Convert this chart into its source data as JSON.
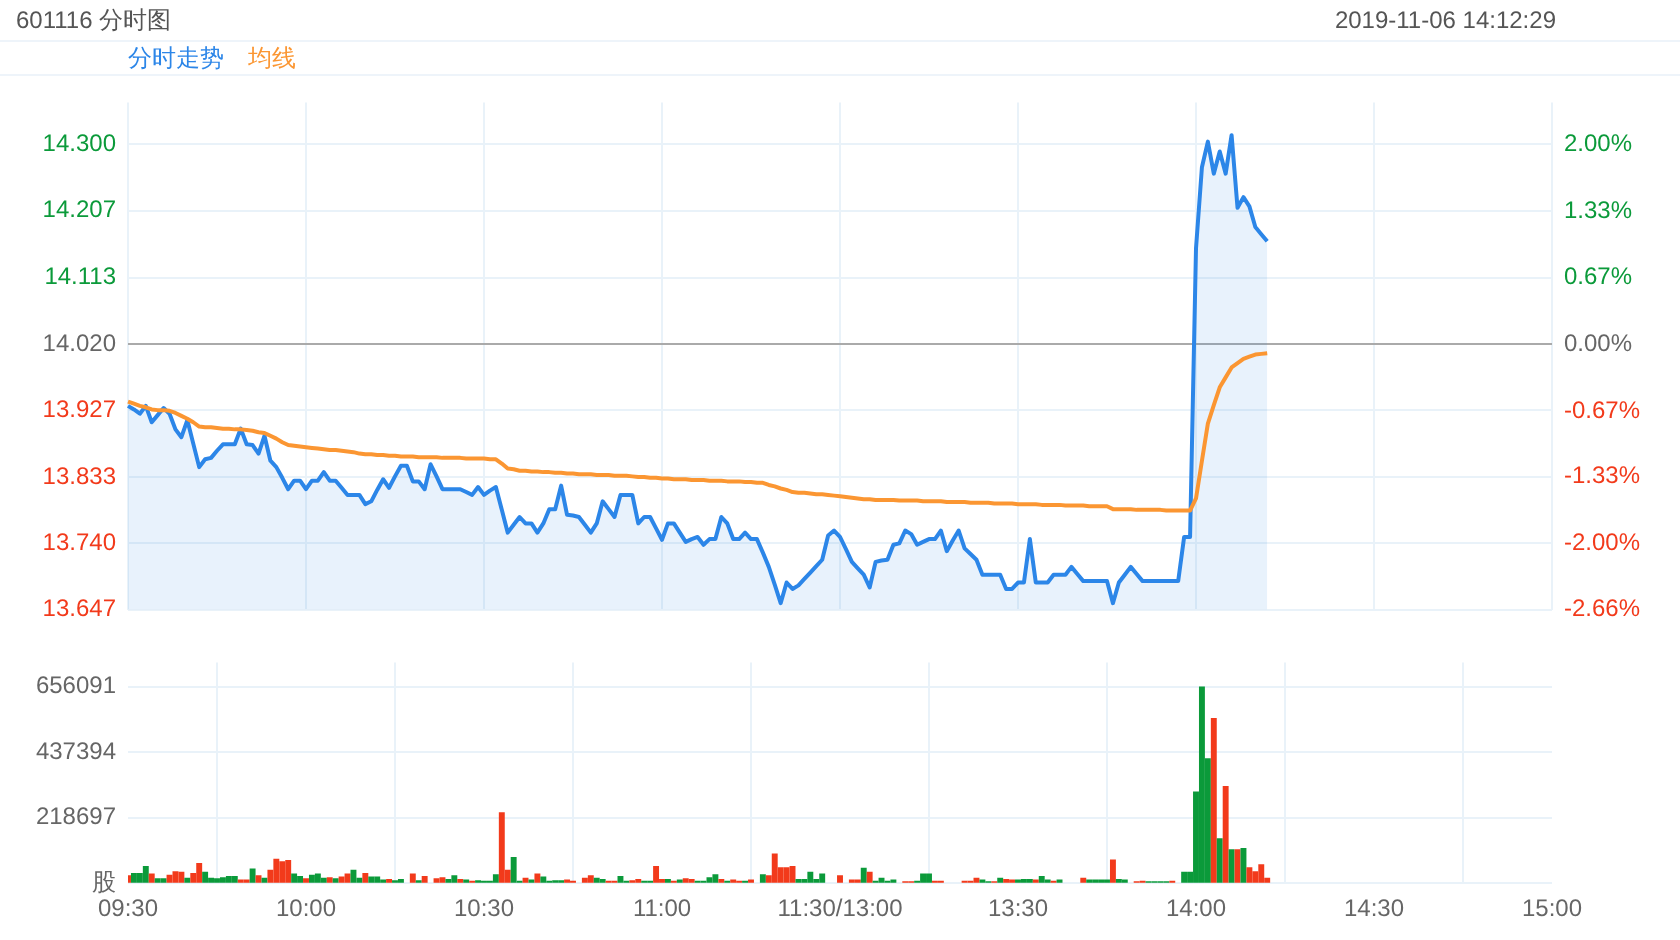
{
  "chart_data": [
    {
      "type": "line",
      "title": "601116 分时图",
      "subtitle": "2019-11-06 14:12:29",
      "legend": "top left",
      "marker": "none",
      "grid": true,
      "tick_labels": "y",
      "categories": [
        null,
        null,
        null,
        null,
        null,
        null,
        null,
        null,
        null,
        null,
        null,
        null,
        null,
        null,
        null,
        null,
        null,
        null,
        null,
        null,
        null,
        null,
        null,
        null,
        null,
        null,
        null,
        null,
        null,
        null,
        null,
        null,
        null,
        null,
        null,
        null,
        null,
        null,
        null,
        null,
        null,
        null,
        null,
        null,
        null,
        null,
        null,
        null,
        null,
        null,
        null,
        null,
        null,
        null,
        null,
        null,
        null,
        null,
        null,
        null,
        null,
        null,
        null,
        null,
        null,
        null,
        null,
        null,
        null,
        null,
        null,
        null,
        null,
        null,
        null,
        null,
        null,
        null,
        null,
        null,
        null,
        null,
        null,
        null,
        null,
        null,
        null,
        null,
        null,
        null,
        null,
        null,
        null,
        null,
        null,
        null,
        null,
        null,
        null,
        null,
        null,
        null,
        null,
        null,
        null,
        null,
        null,
        null,
        null,
        null,
        null,
        null,
        null,
        null,
        null,
        null,
        null,
        null,
        null,
        null,
        null,
        null,
        null,
        null,
        null,
        null,
        null,
        null,
        null,
        null,
        null,
        null,
        null,
        null,
        null,
        null,
        null,
        null,
        null,
        null,
        null,
        null,
        null,
        null,
        null,
        null,
        null,
        null,
        null,
        null,
        null,
        null,
        null,
        null,
        null,
        null,
        null,
        null,
        null,
        null,
        null,
        null,
        null,
        null,
        null,
        null,
        null,
        null,
        null,
        null,
        null,
        null,
        null,
        null,
        null,
        null,
        null,
        null,
        null,
        null,
        null,
        null,
        null,
        null,
        null,
        null,
        null,
        null,
        null,
        null,
        null,
        null,
        null,
        null,
        null,
        null,
        null,
        null,
        null,
        null,
        null,
        null,
        null,
        null,
        null,
        null,
        null,
        null,
        null,
        null,
        null,
        null,
        null,
        null,
        null,
        null,
        null,
        null,
        null,
        null,
        null,
        null,
        null,
        null,
        null,
        null,
        null,
        null,
        null,
        null,
        null,
        null,
        null,
        null,
        null,
        null,
        null,
        null,
        null,
        null,
        null
      ],
      "ylim": [
        13.647,
        14.359
      ],
      "yticks": [
        {
          "value": 13.647,
          "label": "13.647"
        },
        {
          "value": 13.74,
          "label": "13.740"
        },
        {
          "value": 13.833,
          "label": "13.833"
        },
        {
          "value": 13.927,
          "label": "13.927"
        },
        {
          "value": 14.02,
          "label": "14.020"
        },
        {
          "value": 14.113,
          "label": "14.113"
        },
        {
          "value": 14.207,
          "label": "14.207"
        },
        {
          "value": 14.3,
          "label": "14.300"
        }
      ],
      "y2lim": [
        -2.66,
        2.42
      ],
      "y2ticks": [
        {
          "value": -2.66,
          "label": "-2.66%"
        },
        {
          "value": -2,
          "label": "-2.00%"
        },
        {
          "value": -1.33,
          "label": "-1.33%"
        },
        {
          "value": -0.67,
          "label": "-0.67%"
        },
        {
          "value": 0,
          "label": "0.00%"
        },
        {
          "value": 0.67,
          "label": "0.67%"
        },
        {
          "value": 1.33,
          "label": "1.33%"
        },
        {
          "value": 2,
          "label": "2.00%"
        }
      ],
      "ref_lines": [
        {
          "axis": "y",
          "value": 14.02,
          "color": "#aaaaaa"
        }
      ],
      "series": [
        {
          "name": "分时走势",
          "type": "area",
          "color": "#2c86e8",
          "values": [
            13.933,
            13.928,
            13.922,
            13.933,
            13.91,
            13.92,
            13.93,
            13.922,
            13.9,
            13.889,
            13.913,
            13.88,
            13.847,
            13.858,
            13.86,
            13.87,
            13.879,
            13.879,
            13.879,
            13.901,
            13.879,
            13.878,
            13.866,
            13.891,
            13.856,
            13.847,
            13.832,
            13.816,
            13.828,
            13.828,
            13.816,
            13.828,
            13.828,
            13.84,
            13.828,
            13.828,
            13.818,
            13.808,
            13.808,
            13.808,
            13.795,
            13.799,
            13.815,
            13.83,
            13.818,
            13.834,
            13.849,
            13.849,
            13.827,
            13.827,
            13.816,
            13.851,
            13.834,
            13.816,
            13.816,
            13.816,
            13.816,
            13.812,
            13.808,
            13.819,
            13.808,
            13.814,
            13.819,
            13.787,
            13.755,
            13.766,
            13.777,
            13.768,
            13.768,
            13.755,
            13.768,
            13.788,
            13.788,
            13.821,
            13.78,
            13.779,
            13.777,
            13.766,
            13.755,
            13.768,
            13.799,
            13.788,
            13.777,
            13.808,
            13.808,
            13.808,
            13.768,
            13.777,
            13.777,
            13.761,
            13.745,
            13.768,
            13.768,
            13.755,
            13.742,
            13.746,
            13.749,
            13.738,
            13.746,
            13.746,
            13.777,
            13.768,
            13.746,
            13.746,
            13.755,
            13.746,
            13.746,
            13.727,
            13.707,
            13.682,
            13.656,
            13.685,
            13.676,
            13.681,
            13.69,
            13.699,
            13.708,
            13.717,
            13.751,
            13.758,
            13.749,
            13.732,
            13.714,
            13.705,
            13.696,
            13.678,
            13.714,
            13.716,
            13.717,
            13.738,
            13.74,
            13.758,
            13.753,
            13.738,
            13.742,
            13.746,
            13.746,
            13.758,
            13.729,
            13.744,
            13.758,
            13.733,
            13.725,
            13.717,
            13.696,
            13.696,
            13.696,
            13.696,
            13.676,
            13.676,
            13.685,
            13.685,
            13.746,
            13.685,
            13.685,
            13.685,
            13.696,
            13.696,
            13.696,
            13.707,
            13.697,
            13.687,
            13.687,
            13.687,
            13.687,
            13.687,
            13.656,
            13.685,
            13.696,
            13.707,
            13.697,
            13.687,
            13.687,
            13.687,
            13.687,
            13.687,
            13.687,
            13.687,
            13.749,
            13.749,
            14.154,
            14.268,
            14.304,
            14.259,
            14.29,
            14.259,
            14.313,
            14.211,
            14.226,
            14.213,
            14.184,
            14.174,
            14.164,
            null,
            null,
            null,
            null,
            null,
            null,
            null,
            null,
            null,
            null,
            null,
            null,
            null,
            null,
            null,
            null,
            null,
            null,
            null,
            null,
            null,
            null,
            null,
            null,
            null,
            null,
            null,
            null,
            null,
            null,
            null,
            null,
            null,
            null,
            null,
            null,
            null,
            null,
            null,
            null,
            null,
            null,
            null,
            null,
            null,
            null,
            null,
            null
          ]
        },
        {
          "name": "均线",
          "color": "#fb9632",
          "values": [
            13.939,
            13.936,
            13.933,
            13.931,
            13.928,
            13.927,
            13.927,
            13.926,
            13.923,
            13.919,
            13.915,
            13.91,
            13.904,
            13.903,
            13.903,
            13.902,
            13.901,
            13.901,
            13.9,
            13.9,
            13.899,
            13.898,
            13.896,
            13.895,
            13.891,
            13.887,
            13.882,
            13.878,
            13.877,
            13.876,
            13.875,
            13.874,
            13.873,
            13.872,
            13.871,
            13.871,
            13.87,
            13.869,
            13.868,
            13.866,
            13.865,
            13.865,
            13.864,
            13.864,
            13.863,
            13.863,
            13.862,
            13.862,
            13.862,
            13.861,
            13.861,
            13.861,
            13.861,
            13.86,
            13.86,
            13.86,
            13.86,
            13.859,
            13.859,
            13.859,
            13.859,
            13.858,
            13.858,
            13.852,
            13.845,
            13.844,
            13.842,
            13.842,
            13.841,
            13.841,
            13.84,
            13.84,
            13.839,
            13.839,
            13.838,
            13.838,
            13.837,
            13.837,
            13.837,
            13.836,
            13.836,
            13.836,
            13.835,
            13.835,
            13.835,
            13.834,
            13.833,
            13.833,
            13.832,
            13.832,
            13.831,
            13.831,
            13.83,
            13.83,
            13.83,
            13.829,
            13.829,
            13.829,
            13.828,
            13.828,
            13.828,
            13.827,
            13.827,
            13.827,
            13.826,
            13.826,
            13.825,
            13.825,
            13.822,
            13.82,
            13.817,
            13.815,
            13.812,
            13.811,
            13.811,
            13.81,
            13.809,
            13.809,
            13.808,
            13.807,
            13.806,
            13.805,
            13.804,
            13.803,
            13.802,
            13.802,
            13.801,
            13.801,
            13.801,
            13.801,
            13.8,
            13.8,
            13.8,
            13.8,
            13.799,
            13.799,
            13.799,
            13.799,
            13.798,
            13.798,
            13.798,
            13.798,
            13.797,
            13.797,
            13.797,
            13.797,
            13.796,
            13.796,
            13.796,
            13.796,
            13.795,
            13.795,
            13.795,
            13.795,
            13.794,
            13.794,
            13.794,
            13.794,
            13.793,
            13.793,
            13.793,
            13.793,
            13.792,
            13.792,
            13.792,
            13.792,
            13.788,
            13.788,
            13.788,
            13.788,
            13.787,
            13.787,
            13.787,
            13.787,
            13.787,
            13.786,
            13.786,
            13.786,
            13.786,
            13.786,
            13.803,
            13.856,
            13.908,
            13.934,
            13.959,
            13.973,
            13.987,
            13.993,
            13.999,
            14.002,
            14.005,
            14.006,
            14.007,
            null,
            null,
            null,
            null,
            null,
            null,
            null,
            null,
            null,
            null,
            null,
            null,
            null,
            null,
            null,
            null,
            null,
            null,
            null,
            null,
            null,
            null,
            null,
            null,
            null,
            null,
            null,
            null,
            null,
            null,
            null,
            null,
            null,
            null,
            null,
            null,
            null,
            null,
            null,
            null,
            null,
            null,
            null,
            null,
            null,
            null,
            null,
            null
          ]
        }
      ]
    },
    {
      "type": "bar",
      "grid": true,
      "categories": [
        "09:30",
        null,
        null,
        null,
        null,
        null,
        null,
        null,
        null,
        null,
        null,
        null,
        null,
        null,
        null,
        null,
        null,
        null,
        null,
        null,
        null,
        null,
        null,
        null,
        null,
        null,
        null,
        null,
        null,
        null,
        "10:00",
        null,
        null,
        null,
        null,
        null,
        null,
        null,
        null,
        null,
        null,
        null,
        null,
        null,
        null,
        null,
        null,
        null,
        null,
        null,
        null,
        null,
        null,
        null,
        null,
        null,
        null,
        null,
        null,
        null,
        "10:30",
        null,
        null,
        null,
        null,
        null,
        null,
        null,
        null,
        null,
        null,
        null,
        null,
        null,
        null,
        null,
        null,
        null,
        null,
        null,
        null,
        null,
        null,
        null,
        null,
        null,
        null,
        null,
        null,
        null,
        "11:00",
        null,
        null,
        null,
        null,
        null,
        null,
        null,
        null,
        null,
        null,
        null,
        null,
        null,
        null,
        null,
        null,
        null,
        null,
        null,
        null,
        null,
        null,
        null,
        null,
        null,
        null,
        null,
        null,
        null,
        "11:30/13:00",
        null,
        null,
        null,
        null,
        null,
        null,
        null,
        null,
        null,
        null,
        null,
        null,
        null,
        null,
        null,
        null,
        null,
        null,
        null,
        null,
        null,
        null,
        null,
        null,
        null,
        null,
        null,
        null,
        null,
        "13:30",
        null,
        null,
        null,
        null,
        null,
        null,
        null,
        null,
        null,
        null,
        null,
        null,
        null,
        null,
        null,
        null,
        null,
        null,
        null,
        null,
        null,
        null,
        null,
        null,
        null,
        null,
        null,
        null,
        null,
        "14:00",
        null,
        null,
        null,
        null,
        null,
        null,
        null,
        null,
        null,
        null,
        null,
        null,
        null,
        null,
        null,
        null,
        null,
        null,
        null,
        null,
        null,
        null,
        null,
        null,
        null,
        null,
        null,
        null,
        null,
        "14:30",
        null,
        null,
        null,
        null,
        null,
        null,
        null,
        null,
        null,
        null,
        null,
        null,
        null,
        null,
        null,
        null,
        null,
        null,
        null,
        null,
        null,
        null,
        null,
        null,
        null,
        null,
        null,
        null,
        null,
        "15:00"
      ],
      "ylim": [
        0,
        737000
      ],
      "yticks": [
        {
          "value": 0,
          "label": "股"
        },
        218697,
        437394,
        656091
      ],
      "values": [
        24000,
        32000,
        32000,
        55000,
        30000,
        14000,
        14000,
        26000,
        38000,
        36000,
        16000,
        32000,
        65000,
        36000,
        16000,
        14000,
        18000,
        22000,
        22000,
        10000,
        10000,
        47000,
        24000,
        16000,
        43000,
        79000,
        71000,
        75000,
        30000,
        22000,
        14000,
        26000,
        30000,
        16000,
        18000,
        14000,
        20000,
        30000,
        43000,
        16000,
        32000,
        20000,
        20000,
        10000,
        12000,
        8000,
        12000,
        null,
        30000,
        8000,
        22000,
        null,
        14000,
        18000,
        12000,
        24000,
        12000,
        10000,
        6000,
        8000,
        6000,
        6000,
        28000,
        235000,
        43000,
        85000,
        6000,
        16000,
        10000,
        30000,
        20000,
        6000,
        8000,
        8000,
        10000,
        6000,
        null,
        16000,
        24000,
        16000,
        12000,
        6000,
        6000,
        22000,
        6000,
        8000,
        12000,
        6000,
        6000,
        55000,
        12000,
        12000,
        6000,
        10000,
        14000,
        12000,
        6000,
        6000,
        18000,
        28000,
        12000,
        6000,
        10000,
        6000,
        6000,
        10000,
        null,
        28000,
        24000,
        97000,
        51000,
        51000,
        55000,
        12000,
        12000,
        36000,
        12000,
        30000,
        null,
        null,
        24000,
        null,
        10000,
        10000,
        49000,
        36000,
        6000,
        16000,
        6000,
        10000,
        null,
        4000,
        4000,
        6000,
        30000,
        30000,
        6000,
        6000,
        null,
        null,
        null,
        6000,
        6000,
        16000,
        10000,
        4000,
        4000,
        16000,
        12000,
        10000,
        10000,
        12000,
        12000,
        10000,
        22000,
        10000,
        6000,
        10000,
        null,
        null,
        null,
        16000,
        10000,
        10000,
        10000,
        10000,
        77000,
        12000,
        10000,
        null,
        4000,
        6000,
        4000,
        4000,
        4000,
        4000,
        6000,
        null,
        36000,
        36000,
        304000,
        654000,
        415000,
        549000,
        148000,
        322000,
        111000,
        111000,
        115000,
        51000,
        38000,
        61000,
        16000,
        null,
        null,
        null,
        null,
        null,
        null,
        null,
        null,
        null,
        null,
        null,
        null,
        null,
        null,
        null,
        null,
        null,
        null,
        null,
        null,
        null,
        null,
        null,
        null,
        null,
        null,
        null,
        null,
        null,
        null,
        null,
        null,
        null,
        null,
        null,
        null,
        null,
        null,
        null,
        null,
        null,
        null,
        null,
        null,
        null,
        null,
        null,
        null
      ],
      "colors": [
        "#f23a1b",
        "#0b9a3a",
        "#0b9a3a",
        "#0b9a3a",
        "#f23a1b",
        "#0b9a3a",
        "#0b9a3a",
        "#f23a1b",
        "#f23a1b",
        "#f23a1b",
        "#0b9a3a",
        "#f23a1b",
        "#f23a1b",
        "#0b9a3a",
        "#0b9a3a",
        "#0b9a3a",
        "#0b9a3a",
        "#0b9a3a",
        "#0b9a3a",
        "#f23a1b",
        "#f23a1b",
        "#0b9a3a",
        "#f23a1b",
        "#0b9a3a",
        "#f23a1b",
        "#f23a1b",
        "#f23a1b",
        "#f23a1b",
        "#0b9a3a",
        "#0b9a3a",
        "#f23a1b",
        "#0b9a3a",
        "#0b9a3a",
        "#0b9a3a",
        "#f23a1b",
        "#0b9a3a",
        "#f23a1b",
        "#f23a1b",
        "#0b9a3a",
        "#0b9a3a",
        "#f23a1b",
        "#0b9a3a",
        "#0b9a3a",
        "#0b9a3a",
        "#f23a1b",
        "#0b9a3a",
        "#0b9a3a",
        null,
        "#f23a1b",
        "#0b9a3a",
        "#f23a1b",
        null,
        "#f23a1b",
        "#f23a1b",
        "#0b9a3a",
        "#0b9a3a",
        "#f23a1b",
        "#0b9a3a",
        "#f23a1b",
        "#0b9a3a",
        "#0b9a3a",
        "#0b9a3a",
        "#0b9a3a",
        "#f23a1b",
        "#f23a1b",
        "#0b9a3a",
        "#0b9a3a",
        "#f23a1b",
        "#0b9a3a",
        "#f23a1b",
        "#0b9a3a",
        "#0b9a3a",
        "#0b9a3a",
        "#0b9a3a",
        "#f23a1b",
        "#f23a1b",
        null,
        "#f23a1b",
        "#f23a1b",
        "#0b9a3a",
        "#0b9a3a",
        "#f23a1b",
        "#f23a1b",
        "#0b9a3a",
        "#0b9a3a",
        "#f23a1b",
        "#f23a1b",
        "#0b9a3a",
        "#0b9a3a",
        "#f23a1b",
        "#f23a1b",
        "#0b9a3a",
        "#f23a1b",
        "#0b9a3a",
        "#f23a1b",
        "#f23a1b",
        "#0b9a3a",
        "#0b9a3a",
        "#0b9a3a",
        "#0b9a3a",
        "#f23a1b",
        "#0b9a3a",
        "#f23a1b",
        "#f23a1b",
        "#0b9a3a",
        "#f23a1b",
        null,
        "#0b9a3a",
        "#f23a1b",
        "#f23a1b",
        "#f23a1b",
        "#f23a1b",
        "#f23a1b",
        "#0b9a3a",
        "#0b9a3a",
        "#0b9a3a",
        "#0b9a3a",
        "#0b9a3a",
        null,
        null,
        "#f23a1b",
        null,
        "#f23a1b",
        "#f23a1b",
        "#0b9a3a",
        "#f23a1b",
        "#0b9a3a",
        "#0b9a3a",
        "#0b9a3a",
        "#0b9a3a",
        null,
        "#f23a1b",
        "#f23a1b",
        "#0b9a3a",
        "#0b9a3a",
        "#0b9a3a",
        "#f23a1b",
        "#f23a1b",
        null,
        null,
        null,
        "#f23a1b",
        "#f23a1b",
        "#f23a1b",
        "#0b9a3a",
        "#0b9a3a",
        "#f23a1b",
        "#0b9a3a",
        "#f23a1b",
        "#f23a1b",
        "#0b9a3a",
        "#0b9a3a",
        "#0b9a3a",
        "#f23a1b",
        "#0b9a3a",
        "#0b9a3a",
        "#f23a1b",
        "#0b9a3a",
        null,
        null,
        null,
        "#f23a1b",
        "#0b9a3a",
        "#0b9a3a",
        "#0b9a3a",
        "#0b9a3a",
        "#f23a1b",
        "#0b9a3a",
        "#0b9a3a",
        null,
        "#f23a1b",
        "#f23a1b",
        "#0b9a3a",
        "#0b9a3a",
        "#0b9a3a",
        "#0b9a3a",
        "#f23a1b",
        null,
        "#0b9a3a",
        "#0b9a3a",
        "#0b9a3a",
        "#0b9a3a",
        "#0b9a3a",
        "#f23a1b",
        "#0b9a3a",
        "#f23a1b",
        "#0b9a3a",
        "#f23a1b",
        "#0b9a3a",
        "#f23a1b",
        "#f23a1b",
        "#f23a1b",
        "#f23a1b",
        null,
        null,
        null,
        null,
        null,
        null,
        null,
        null,
        null,
        null,
        null,
        null,
        null,
        null,
        null,
        null,
        null,
        null,
        null,
        null,
        null,
        null,
        null,
        null,
        null,
        null,
        null,
        null,
        null,
        null,
        null,
        null,
        null,
        null,
        null,
        null,
        null,
        null,
        null,
        null,
        null,
        null,
        null,
        null,
        null,
        null,
        null,
        null
      ]
    }
  ]
}
